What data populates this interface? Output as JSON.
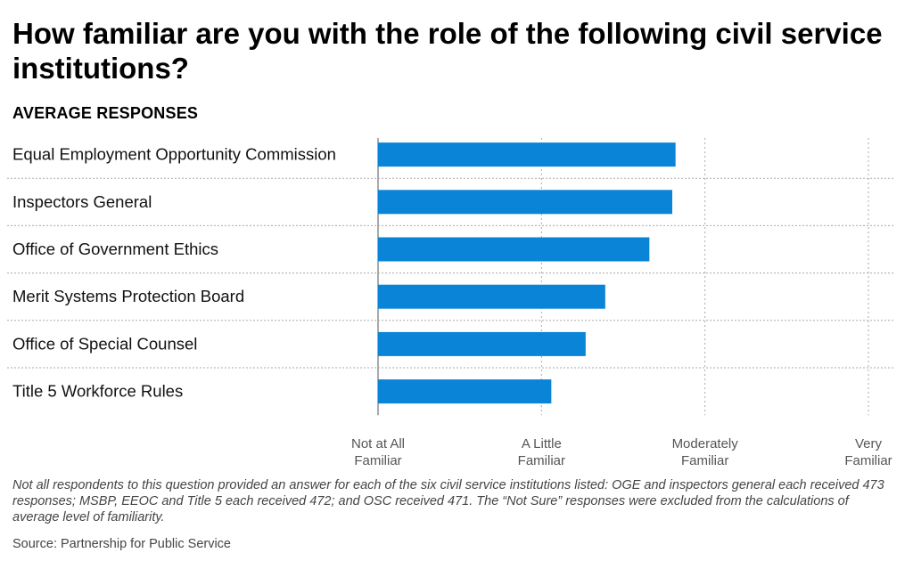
{
  "title": "How familiar are you with the role of the following civil service institutions?",
  "subtitle": "AVERAGE RESPONSES",
  "footnote": "Not all respondents to this question provided an answer for each of the six civil service institutions listed: OGE and inspectors general each received 473 responses; MSBP, EEOC and Title 5 each received 472; and OSC received 471. The “Not Sure” responses were excluded from the calculations of average level of familiarity.",
  "source": "Source: Partnership for Public Service",
  "colors": {
    "bar": "#0a84d6",
    "grid": "#aaaaaa"
  },
  "chart_data": {
    "type": "bar",
    "orientation": "horizontal",
    "categories": [
      "Equal Employment Opportunity Commission",
      "Inspectors General",
      "Office of Government Ethics",
      "Merit Systems Protection Board",
      "Office of Special Counsel",
      "Title 5 Workforce Rules"
    ],
    "values": [
      2.82,
      2.8,
      2.66,
      2.39,
      2.27,
      2.06
    ],
    "xlim": [
      1,
      4
    ],
    "xticks": [
      {
        "value": 1,
        "label": [
          "Not at All",
          "Familiar"
        ]
      },
      {
        "value": 2,
        "label": [
          "A Little",
          "Familiar"
        ]
      },
      {
        "value": 3,
        "label": [
          "Moderately",
          "Familiar"
        ]
      },
      {
        "value": 4,
        "label": [
          "Very",
          "Familiar"
        ]
      }
    ],
    "grid": true
  }
}
